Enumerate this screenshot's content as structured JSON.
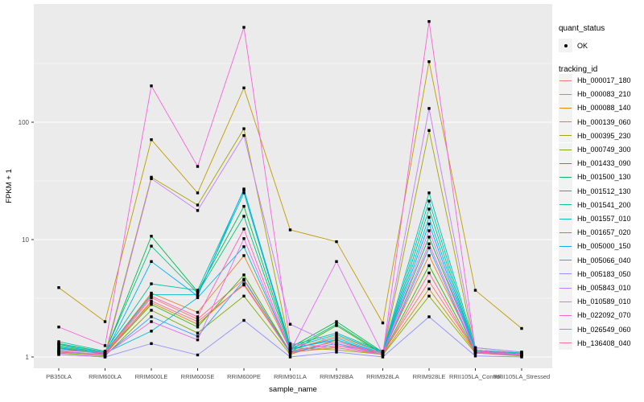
{
  "chart_data": {
    "type": "line",
    "title": "",
    "xlabel": "sample_name",
    "ylabel": "FPKM + 1",
    "x_categories": [
      "PB350LA",
      "RRIM600LA",
      "RRIM600LE",
      "RRIM600SE",
      "RRIM600PE",
      "RRIM901LA",
      "RRIM928BA",
      "RRIM928LA",
      "RRIM928LE",
      "RRII105LA_Control",
      "RRII105LA_Stressed"
    ],
    "y_scale": "log10",
    "y_major_ticks": [
      1,
      10,
      100
    ],
    "y_minor_ticks": [
      3.1623,
      31.623,
      316.23
    ],
    "ylim": [
      0.97,
      1000
    ],
    "grid": true,
    "legend_position": "right",
    "panel_bg": "#EBEBEB",
    "grid_color": "#FFFFFF",
    "point_color": "#000000",
    "point_shape": "square",
    "series": [
      {
        "name": "Hb_000017_180",
        "color": "#F8766D",
        "values_fpkm_plus_1": [
          1.12,
          1.05,
          3.2,
          2.1,
          4.6,
          1.1,
          1.3,
          1.08,
          4.4,
          1.12,
          1.05
        ]
      },
      {
        "name": "Hb_000083_210",
        "color": "#EA8331",
        "values_fpkm_plus_1": [
          1.3,
          1.1,
          3.5,
          2.4,
          7.3,
          1.15,
          1.5,
          1.1,
          7.3,
          1.15,
          1.08
        ]
      },
      {
        "name": "Hb_000088_140",
        "color": "#D89000",
        "values_fpkm_plus_1": [
          1.15,
          1.08,
          2.9,
          1.9,
          4.2,
          1.1,
          1.2,
          1.05,
          3.8,
          1.1,
          1.05
        ]
      },
      {
        "name": "Hb_000139_060",
        "color": "#C09B00",
        "values_fpkm_plus_1": [
          3.9,
          2.0,
          71,
          25,
          196,
          12.1,
          9.6,
          1.95,
          328,
          3.7,
          1.75
        ]
      },
      {
        "name": "Hb_000395_230",
        "color": "#A3A500",
        "values_fpkm_plus_1": [
          1.1,
          1.05,
          34,
          19.7,
          88,
          1.2,
          1.15,
          1.05,
          85,
          1.1,
          1.05
        ]
      },
      {
        "name": "Hb_000749_300",
        "color": "#7CAE00",
        "values_fpkm_plus_1": [
          1.08,
          1.02,
          2.5,
          1.6,
          3.3,
          1.05,
          1.4,
          1.04,
          3.3,
          1.08,
          1.02
        ]
      },
      {
        "name": "Hb_001433_090",
        "color": "#39B600",
        "values_fpkm_plus_1": [
          1.2,
          1.06,
          2.8,
          1.8,
          5.0,
          1.1,
          1.85,
          1.06,
          6.0,
          1.1,
          1.04
        ]
      },
      {
        "name": "Hb_001500_130",
        "color": "#00BB4E",
        "values_fpkm_plus_1": [
          1.25,
          1.08,
          10.7,
          3.6,
          19.2,
          1.2,
          2.0,
          1.1,
          10.5,
          1.15,
          1.06
        ]
      },
      {
        "name": "Hb_001512_130",
        "color": "#00BF7D",
        "values_fpkm_plus_1": [
          1.3,
          1.1,
          8.8,
          3.5,
          15.8,
          1.15,
          1.9,
          1.08,
          18.2,
          1.12,
          1.05
        ]
      },
      {
        "name": "Hb_001541_200",
        "color": "#00C1A3",
        "values_fpkm_plus_1": [
          1.35,
          1.12,
          4.2,
          3.7,
          26.4,
          1.25,
          1.6,
          1.12,
          25,
          1.2,
          1.1
        ]
      },
      {
        "name": "Hb_001557_010",
        "color": "#00BFC4",
        "values_fpkm_plus_1": [
          1.28,
          1.1,
          3.4,
          3.4,
          25,
          1.2,
          1.55,
          1.1,
          21.3,
          1.15,
          1.08
        ]
      },
      {
        "name": "Hb_001657_020",
        "color": "#00BAE0",
        "values_fpkm_plus_1": [
          1.22,
          1.08,
          1.66,
          3.2,
          8.7,
          1.15,
          1.45,
          1.08,
          15.5,
          1.12,
          1.06
        ]
      },
      {
        "name": "Hb_005000_150",
        "color": "#00B0F6",
        "values_fpkm_plus_1": [
          1.18,
          1.06,
          6.5,
          3.3,
          27,
          1.18,
          1.4,
          1.07,
          13.6,
          1.1,
          1.05
        ]
      },
      {
        "name": "Hb_005066_040",
        "color": "#35A2FF",
        "values_fpkm_plus_1": [
          1.12,
          1.04,
          2.2,
          1.5,
          4.5,
          1.1,
          1.3,
          1.05,
          8.5,
          1.08,
          1.04
        ]
      },
      {
        "name": "Hb_005183_050",
        "color": "#9590FF",
        "values_fpkm_plus_1": [
          1.05,
          1.0,
          1.3,
          1.04,
          2.05,
          1.0,
          1.1,
          1.0,
          2.2,
          1.02,
          1.0
        ]
      },
      {
        "name": "Hb_005843_010",
        "color": "#C77CFF",
        "values_fpkm_plus_1": [
          1.05,
          1.0,
          33,
          17.7,
          77,
          1.9,
          1.25,
          1.1,
          131,
          1.2,
          1.1
        ]
      },
      {
        "name": "Hb_010589_010",
        "color": "#E76BF3",
        "values_fpkm_plus_1": [
          1.1,
          1.05,
          2.0,
          1.4,
          10.2,
          1.12,
          6.5,
          1.06,
          11.9,
          1.1,
          1.05
        ]
      },
      {
        "name": "Hb_022092_070",
        "color": "#FA62DB",
        "values_fpkm_plus_1": [
          1.8,
          1.25,
          204,
          42,
          643,
          1.3,
          1.2,
          1.05,
          721,
          1.15,
          1.05
        ]
      },
      {
        "name": "Hb_026549_060",
        "color": "#FF62BC",
        "values_fpkm_plus_1": [
          1.15,
          1.08,
          3.3,
          2.2,
          12.3,
          1.12,
          1.35,
          1.07,
          9.2,
          1.1,
          1.06
        ]
      },
      {
        "name": "Hb_136408_040",
        "color": "#FF6A98",
        "values_fpkm_plus_1": [
          1.1,
          1.04,
          3.0,
          2.0,
          4.1,
          1.08,
          1.25,
          1.05,
          5.2,
          1.08,
          1.03
        ]
      }
    ]
  },
  "axes": {
    "y_title": "FPKM + 1",
    "x_title": "sample_name",
    "y_tick_labels": [
      "1",
      "10",
      "100"
    ],
    "tick_label_color": "#4D4D4D"
  },
  "legend": {
    "quant_title": "quant_status",
    "quant_item": "OK",
    "tracking_title": "tracking_id"
  }
}
